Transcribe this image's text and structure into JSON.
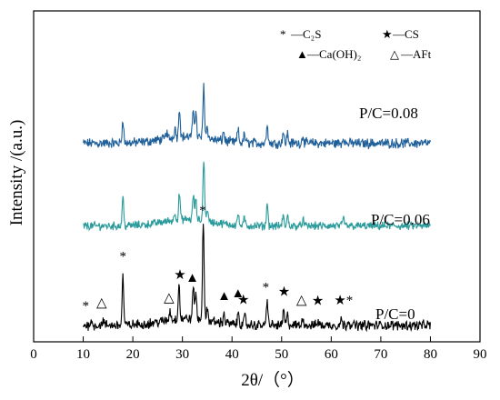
{
  "chart_data": {
    "type": "line",
    "xlabel": "2θ/（°）",
    "ylabel": "Intensity /(a.u.)",
    "xlim": [
      0,
      90
    ],
    "xticks": [
      0,
      10,
      20,
      30,
      40,
      50,
      60,
      70,
      80,
      90
    ],
    "x_range": [
      10,
      80
    ],
    "grid": false,
    "legend_position": "top-right",
    "legend": [
      {
        "symbol": "*",
        "text": "—C₂S"
      },
      {
        "symbol": "★",
        "text": "—CS"
      },
      {
        "symbol": "▲",
        "text": "—Ca(OH)₂"
      },
      {
        "symbol": "△",
        "text": "—AFt"
      }
    ],
    "series": [
      {
        "name": "P/C=0.08",
        "color": "#1f5f99",
        "baseline": 0.6,
        "noise": 0.012,
        "peaks": [
          {
            "x": 18.0,
            "h": 0.075
          },
          {
            "x": 26.8,
            "h": 0.02
          },
          {
            "x": 28.5,
            "h": 0.03
          },
          {
            "x": 29.4,
            "h": 0.09
          },
          {
            "x": 32.2,
            "h": 0.085
          },
          {
            "x": 32.7,
            "h": 0.075
          },
          {
            "x": 34.3,
            "h": 0.16
          },
          {
            "x": 35.0,
            "h": 0.04
          },
          {
            "x": 38.3,
            "h": 0.03
          },
          {
            "x": 41.2,
            "h": 0.04
          },
          {
            "x": 42.5,
            "h": 0.025
          },
          {
            "x": 47.1,
            "h": 0.065
          },
          {
            "x": 50.3,
            "h": 0.035
          },
          {
            "x": 51.2,
            "h": 0.03
          },
          {
            "x": 54.3,
            "h": 0.025
          },
          {
            "x": 62.5,
            "h": 0.02
          }
        ]
      },
      {
        "name": "P/C=0.06",
        "color": "#2a9a9a",
        "baseline": 0.35,
        "noise": 0.01,
        "peaks": [
          {
            "x": 18.0,
            "h": 0.09
          },
          {
            "x": 28.5,
            "h": 0.025
          },
          {
            "x": 29.4,
            "h": 0.08
          },
          {
            "x": 32.2,
            "h": 0.075
          },
          {
            "x": 32.7,
            "h": 0.06
          },
          {
            "x": 34.3,
            "h": 0.19
          },
          {
            "x": 35.0,
            "h": 0.04
          },
          {
            "x": 41.2,
            "h": 0.035
          },
          {
            "x": 42.5,
            "h": 0.02
          },
          {
            "x": 47.1,
            "h": 0.07
          },
          {
            "x": 50.3,
            "h": 0.03
          },
          {
            "x": 51.2,
            "h": 0.03
          },
          {
            "x": 54.3,
            "h": 0.02
          },
          {
            "x": 62.5,
            "h": 0.025
          }
        ]
      },
      {
        "name": "P/C=0",
        "color": "#000000",
        "baseline": 0.05,
        "noise": 0.012,
        "peaks": [
          {
            "x": 11.5,
            "h": 0.015
          },
          {
            "x": 14.0,
            "h": 0.015
          },
          {
            "x": 18.0,
            "h": 0.15
          },
          {
            "x": 27.5,
            "h": 0.03
          },
          {
            "x": 29.3,
            "h": 0.11
          },
          {
            "x": 32.2,
            "h": 0.1
          },
          {
            "x": 32.7,
            "h": 0.08
          },
          {
            "x": 34.2,
            "h": 0.3
          },
          {
            "x": 35.0,
            "h": 0.04
          },
          {
            "x": 38.4,
            "h": 0.03
          },
          {
            "x": 41.3,
            "h": 0.04
          },
          {
            "x": 42.6,
            "h": 0.025
          },
          {
            "x": 47.1,
            "h": 0.08
          },
          {
            "x": 50.4,
            "h": 0.045
          },
          {
            "x": 51.2,
            "h": 0.03
          },
          {
            "x": 54.3,
            "h": 0.025
          },
          {
            "x": 57.3,
            "h": 0.015
          },
          {
            "x": 62.0,
            "h": 0.02
          },
          {
            "x": 63.5,
            "h": 0.02
          }
        ]
      }
    ],
    "peak_markers": [
      {
        "x": 10.5,
        "symbol": "*",
        "series": "P/C=0"
      },
      {
        "x": 13.7,
        "symbol": "△",
        "series": "P/C=0"
      },
      {
        "x": 18.0,
        "symbol": "*",
        "series": "P/C=0"
      },
      {
        "x": 27.3,
        "symbol": "△",
        "series": "P/C=0"
      },
      {
        "x": 29.5,
        "symbol": "★",
        "series": "P/C=0"
      },
      {
        "x": 32.0,
        "symbol": "▲",
        "series": "P/C=0"
      },
      {
        "x": 34.1,
        "symbol": "*",
        "series": "P/C=0"
      },
      {
        "x": 38.4,
        "symbol": "▲",
        "series": "P/C=0"
      },
      {
        "x": 41.2,
        "symbol": "▲",
        "series": "P/C=0"
      },
      {
        "x": 42.3,
        "symbol": "★",
        "series": "P/C=0"
      },
      {
        "x": 46.8,
        "symbol": "*",
        "series": "P/C=0"
      },
      {
        "x": 50.5,
        "symbol": "★",
        "series": "P/C=0"
      },
      {
        "x": 54.0,
        "symbol": "△",
        "series": "P/C=0"
      },
      {
        "x": 57.3,
        "symbol": "★",
        "series": "P/C=0"
      },
      {
        "x": 61.8,
        "symbol": "★",
        "series": "P/C=0"
      },
      {
        "x": 63.7,
        "symbol": "*",
        "series": "P/C=0"
      }
    ]
  }
}
